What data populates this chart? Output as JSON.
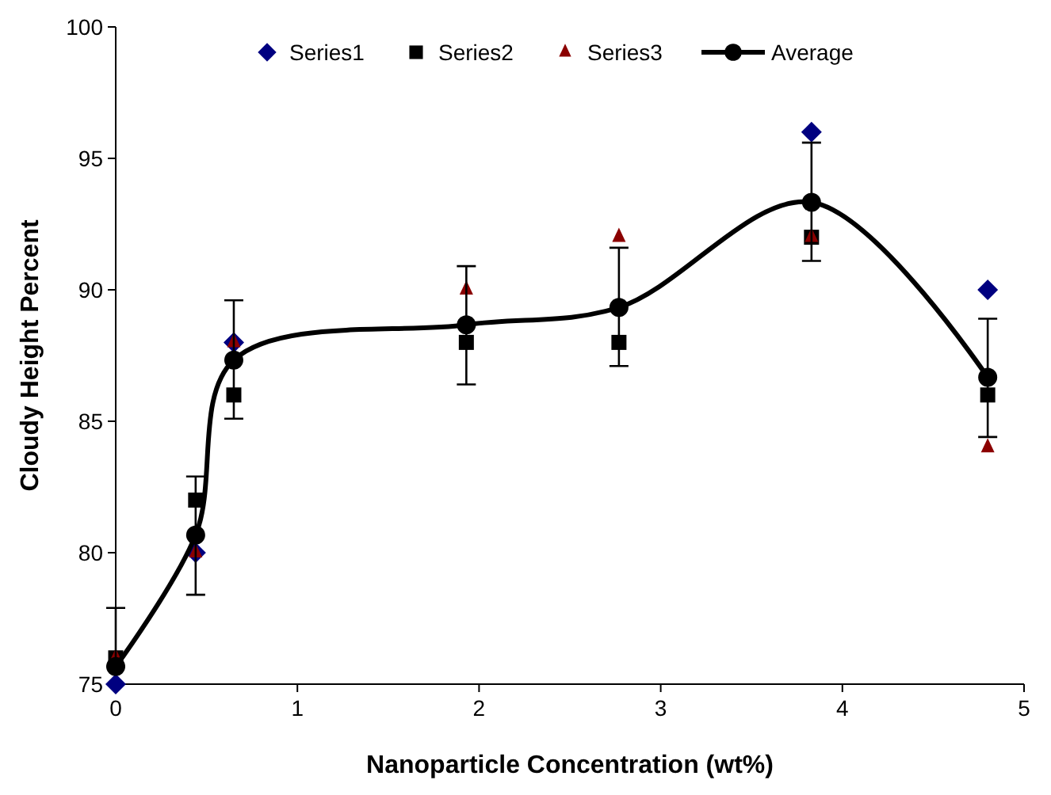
{
  "chart_data": {
    "type": "scatter",
    "xlabel": "Nanoparticle Concentration (wt%)",
    "ylabel": "Cloudy Height Percent",
    "x": [
      0,
      0.44,
      0.65,
      1.93,
      2.77,
      3.83,
      4.8
    ],
    "xlim": [
      0,
      5
    ],
    "xticks": [
      0,
      1,
      2,
      3,
      4,
      5
    ],
    "ylim": [
      75,
      100
    ],
    "yticks": [
      75,
      80,
      85,
      90,
      95,
      100
    ],
    "grid": false,
    "legend": "top",
    "series": [
      {
        "name": "Series1",
        "color": "#000080",
        "marker": "diamond",
        "values": [
          75,
          80,
          88,
          null,
          null,
          96,
          90
        ]
      },
      {
        "name": "Series2",
        "color": "#000000",
        "marker": "square",
        "values": [
          76,
          82,
          86,
          88,
          88,
          92,
          86
        ]
      },
      {
        "name": "Series3",
        "color": "#8b0000",
        "marker": "triangle",
        "values": [
          76,
          80,
          88,
          90,
          92,
          92,
          84
        ]
      },
      {
        "name": "Average",
        "type": "line",
        "color": "#000000",
        "marker": "circle",
        "values": [
          75.67,
          80.67,
          87.33,
          88.67,
          89.33,
          93.33,
          86.67
        ],
        "errors": [
          [
            75.67,
            77.9
          ],
          [
            78.4,
            82.9
          ],
          [
            85.1,
            89.6
          ],
          [
            86.4,
            90.9
          ],
          [
            87.1,
            91.6
          ],
          [
            91.1,
            95.6
          ],
          [
            84.4,
            88.9
          ]
        ]
      }
    ]
  }
}
